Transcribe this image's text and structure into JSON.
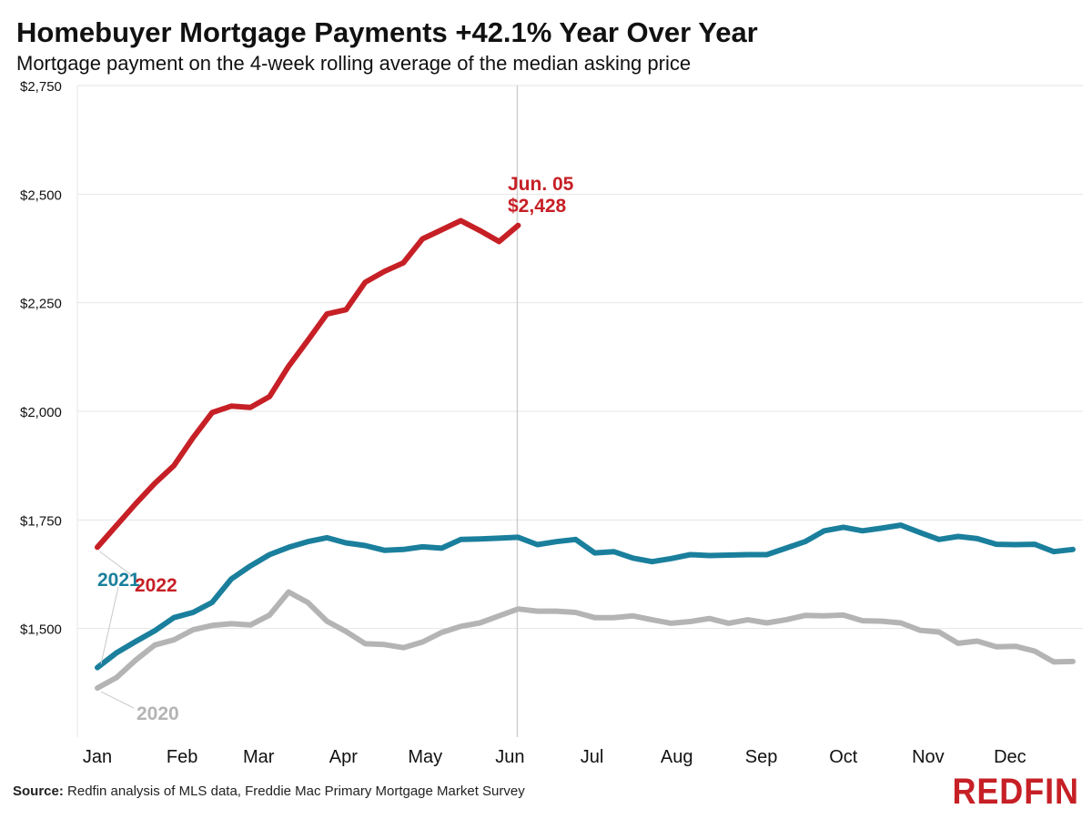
{
  "header": {
    "title": "Homebuyer Mortgage Payments +42.1% Year Over Year",
    "subtitle": "Mortgage payment on the 4-week rolling average of the median asking price"
  },
  "footer": {
    "source_label": "Source:",
    "source_text": "Redfin analysis of MLS data, Freddie Mac Primary Mortgage Market Survey",
    "logo_text": "REDFIN"
  },
  "colors": {
    "series_2022": "#c62026",
    "series_2021": "#1a7f9c",
    "series_2020": "#b4b4b4",
    "logo": "#c62026",
    "grid": "#e6e6e6"
  },
  "chart_data": {
    "type": "line",
    "title": "Homebuyer Mortgage Payments +42.1% Year Over Year",
    "subtitle": "Mortgage payment on the 4-week rolling average of the median asking price",
    "xlabel": "",
    "ylabel": "",
    "ylim": [
      1250,
      2750
    ],
    "yticks": [
      1500,
      1750,
      2000,
      2250,
      2500,
      2750
    ],
    "ytick_labels": [
      "$1,500",
      "$1,750",
      "$2,000",
      "$2,250",
      "$2,500",
      "$2,750"
    ],
    "x_unit": "week of year",
    "xlim": [
      1,
      53
    ],
    "month_ticks": [
      {
        "label": "Jan",
        "week": 1
      },
      {
        "label": "Feb",
        "week": 5.43
      },
      {
        "label": "Mar",
        "week": 9.43
      },
      {
        "label": "Apr",
        "week": 13.86
      },
      {
        "label": "May",
        "week": 18.14
      },
      {
        "label": "Jun",
        "week": 22.57
      },
      {
        "label": "Jul",
        "week": 26.86
      },
      {
        "label": "Aug",
        "week": 31.29
      },
      {
        "label": "Sep",
        "week": 35.71
      },
      {
        "label": "Oct",
        "week": 40
      },
      {
        "label": "Nov",
        "week": 44.43
      },
      {
        "label": "Dec",
        "week": 48.71
      }
    ],
    "grid": true,
    "legend": "inline-labels",
    "series": [
      {
        "name": "2020",
        "color_key": "series_2020",
        "x": [
          1,
          2,
          3,
          4,
          5,
          6,
          7,
          8,
          9,
          10,
          11,
          12,
          13,
          14,
          15,
          16,
          17,
          18,
          19,
          20,
          21,
          22,
          23,
          24,
          25,
          26,
          27,
          28,
          29,
          30,
          31,
          32,
          33,
          34,
          35,
          36,
          37,
          38,
          39,
          40,
          41,
          42,
          43,
          44,
          45,
          46,
          47,
          48,
          49,
          50,
          51,
          52
        ],
        "values": [
          1363,
          1387,
          1427,
          1462,
          1474,
          1497,
          1507,
          1511,
          1508,
          1531,
          1584,
          1560,
          1517,
          1493,
          1465,
          1463,
          1456,
          1469,
          1491,
          1505,
          1513,
          1529,
          1545,
          1540,
          1540,
          1537,
          1525,
          1525,
          1529,
          1520,
          1512,
          1516,
          1523,
          1512,
          1520,
          1513,
          1520,
          1530,
          1529,
          1531,
          1518,
          1517,
          1513,
          1496,
          1492,
          1466,
          1471,
          1458,
          1459,
          1448,
          1423,
          1424
        ]
      },
      {
        "name": "2021",
        "color_key": "series_2021",
        "x": [
          1,
          2,
          3,
          4,
          5,
          6,
          7,
          8,
          9,
          10,
          11,
          12,
          13,
          14,
          15,
          16,
          17,
          18,
          19,
          20,
          21,
          22,
          23,
          24,
          25,
          26,
          27,
          28,
          29,
          30,
          31,
          32,
          33,
          34,
          35,
          36,
          37,
          38,
          39,
          40,
          41,
          42,
          43,
          44,
          45,
          46,
          47,
          48,
          49,
          50,
          51,
          52
        ],
        "values": [
          1410,
          1444,
          1470,
          1495,
          1525,
          1537,
          1560,
          1614,
          1644,
          1670,
          1687,
          1700,
          1709,
          1697,
          1691,
          1680,
          1682,
          1688,
          1685,
          1705,
          1706,
          1708,
          1710,
          1693,
          1700,
          1705,
          1674,
          1677,
          1662,
          1654,
          1661,
          1670,
          1668,
          1669,
          1670,
          1670,
          1685,
          1700,
          1725,
          1733,
          1725,
          1731,
          1738,
          1721,
          1705,
          1712,
          1707,
          1694,
          1693,
          1694,
          1677,
          1682
        ]
      },
      {
        "name": "2022",
        "color_key": "series_2022",
        "x": [
          1,
          2,
          3,
          4,
          5,
          6,
          7,
          8,
          9,
          10,
          11,
          12,
          13,
          14,
          15,
          16,
          17,
          18,
          19,
          20,
          21,
          22,
          23
        ],
        "values": [
          1687,
          1737,
          1787,
          1834,
          1875,
          1939,
          1997,
          2012,
          2009,
          2034,
          2104,
          2163,
          2224,
          2234,
          2297,
          2322,
          2342,
          2397,
          2418,
          2439,
          2416,
          2391,
          2428
        ]
      }
    ],
    "annotation": {
      "date_label": "Jun. 05",
      "value_label": "$2,428",
      "week": 23,
      "value": 2428
    },
    "series_labels": {
      "2020": "2020",
      "2021": "2021",
      "2022": "2022"
    }
  }
}
